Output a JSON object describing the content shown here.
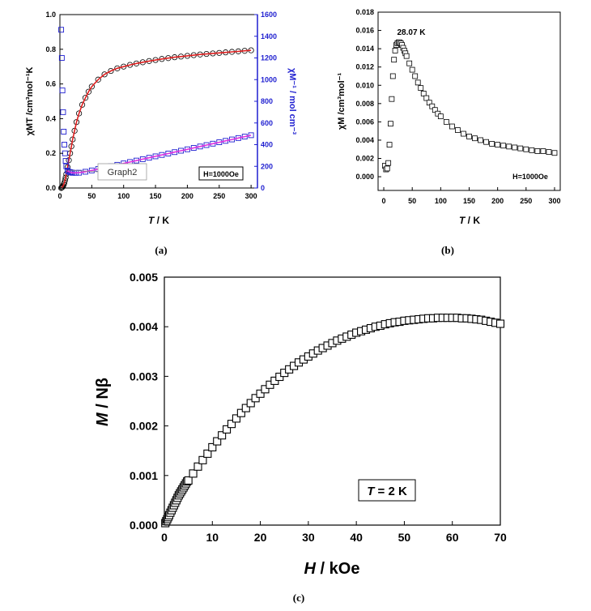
{
  "panel_labels": {
    "a": "(a)",
    "b": "(b)",
    "c": "(c)"
  },
  "chart_data": [
    {
      "panel": "(a)",
      "type": "scatter",
      "xlabel_italic": "T",
      "xlabel_rest": " / K",
      "ylabel_left": "χMT /cm³mol⁻¹K",
      "ylabel_right": "χM⁻¹ / mol cm⁻³",
      "xlim": [
        0,
        310
      ],
      "ylim_left": [
        0,
        1.0
      ],
      "ylim_right": [
        0,
        1600
      ],
      "xticks": [
        0,
        50,
        100,
        150,
        200,
        250,
        300
      ],
      "yticks_left": [
        0.0,
        0.2,
        0.4,
        0.6,
        0.8,
        1.0
      ],
      "yticks_left_labels": [
        "0.0",
        "0.2",
        "0.4",
        "0.6",
        "0.8",
        "1.0"
      ],
      "yticks_right": [
        0,
        200,
        400,
        600,
        800,
        1000,
        1200,
        1400,
        1600
      ],
      "annotation_box": "H=1000Oe",
      "callout": "Graph2",
      "series_chiT": {
        "x": [
          2,
          3,
          4,
          5,
          6,
          7,
          8,
          9,
          10,
          12,
          14,
          16,
          18,
          20,
          23,
          26,
          30,
          35,
          40,
          45,
          50,
          60,
          70,
          80,
          90,
          100,
          110,
          120,
          130,
          140,
          150,
          160,
          170,
          180,
          190,
          200,
          210,
          220,
          230,
          240,
          250,
          260,
          270,
          280,
          290,
          300
        ],
        "y": [
          0.0,
          0.003,
          0.006,
          0.012,
          0.02,
          0.03,
          0.045,
          0.06,
          0.08,
          0.12,
          0.16,
          0.2,
          0.24,
          0.28,
          0.33,
          0.38,
          0.43,
          0.48,
          0.52,
          0.555,
          0.585,
          0.625,
          0.655,
          0.675,
          0.69,
          0.7,
          0.71,
          0.718,
          0.725,
          0.732,
          0.738,
          0.744,
          0.749,
          0.754,
          0.758,
          0.762,
          0.766,
          0.77,
          0.773,
          0.776,
          0.779,
          0.782,
          0.785,
          0.788,
          0.791,
          0.794
        ]
      },
      "series_invchi": {
        "x": [
          2,
          3,
          4,
          5,
          6,
          7,
          8,
          9,
          10,
          12,
          14,
          16,
          18,
          20,
          25,
          30,
          40,
          50,
          60,
          70,
          80,
          90,
          100,
          110,
          120,
          130,
          140,
          150,
          160,
          170,
          180,
          190,
          200,
          210,
          220,
          230,
          240,
          250,
          260,
          270,
          280,
          290,
          300
        ],
        "y": [
          1460,
          1200,
          900,
          700,
          520,
          400,
          320,
          250,
          200,
          160,
          150,
          146,
          143,
          140,
          140,
          141,
          150,
          162,
          175,
          188,
          201,
          214,
          227,
          240,
          253,
          266,
          279,
          292,
          305,
          318,
          331,
          344,
          357,
          370,
          383,
          396,
          409,
          422,
          435,
          448,
          461,
          474,
          487
        ]
      }
    },
    {
      "panel": "(b)",
      "type": "scatter",
      "xlabel_italic": "T",
      "xlabel_rest": " / K",
      "ylabel": "χM /cm³mol⁻¹",
      "xlim": [
        -10,
        310
      ],
      "ylim": [
        -0.0015,
        0.018
      ],
      "xticks": [
        0,
        50,
        100,
        150,
        200,
        250,
        300
      ],
      "yticks": [
        0.0,
        0.002,
        0.004,
        0.006,
        0.008,
        0.01,
        0.012,
        0.014,
        0.016,
        0.018
      ],
      "yticks_labels": [
        "0.000",
        "0.002",
        "0.004",
        "0.006",
        "0.008",
        "0.010",
        "0.012",
        "0.014",
        "0.016",
        "0.018"
      ],
      "peak_label": "28.07 K",
      "annotation": "H=1000Oe",
      "x": [
        2,
        4,
        6,
        8,
        10,
        12,
        14,
        16,
        18,
        20,
        22,
        24,
        26,
        28,
        30,
        32,
        34,
        36,
        38,
        40,
        45,
        50,
        55,
        60,
        65,
        70,
        75,
        80,
        85,
        90,
        95,
        100,
        110,
        120,
        130,
        140,
        150,
        160,
        170,
        180,
        190,
        200,
        210,
        220,
        230,
        240,
        250,
        260,
        270,
        280,
        290,
        300
      ],
      "y": [
        0.0012,
        0.0008,
        0.0009,
        0.0015,
        0.0035,
        0.0058,
        0.0085,
        0.011,
        0.0128,
        0.0138,
        0.0144,
        0.0146,
        0.0147,
        0.0147,
        0.0146,
        0.0144,
        0.0141,
        0.0138,
        0.0135,
        0.0132,
        0.0124,
        0.0117,
        0.011,
        0.0103,
        0.0097,
        0.0091,
        0.0086,
        0.0081,
        0.0077,
        0.0073,
        0.0069,
        0.0066,
        0.006,
        0.0055,
        0.0051,
        0.0047,
        0.0044,
        0.0042,
        0.004,
        0.0038,
        0.0036,
        0.0035,
        0.0034,
        0.0033,
        0.0032,
        0.0031,
        0.003,
        0.0029,
        0.0028,
        0.0028,
        0.0027,
        0.0026
      ]
    },
    {
      "panel": "(c)",
      "type": "scatter",
      "xlabel_italic": "H",
      "xlabel_rest": " / kOe",
      "ylabel_italic": "M",
      "ylabel_rest": " / Nβ",
      "xlim": [
        0,
        70
      ],
      "ylim": [
        0,
        0.005
      ],
      "xticks": [
        0,
        10,
        20,
        30,
        40,
        50,
        60,
        70
      ],
      "yticks": [
        0.0,
        0.001,
        0.002,
        0.003,
        0.004,
        0.005
      ],
      "yticks_labels": [
        "0.000",
        "0.001",
        "0.002",
        "0.003",
        "0.004",
        "0.005"
      ],
      "legend_italic": "T",
      "legend_rest": " = 2 K",
      "x": [
        0.2,
        0.4,
        0.6,
        0.8,
        1.0,
        1.25,
        1.5,
        1.75,
        2.0,
        2.25,
        2.5,
        2.75,
        3.0,
        3.25,
        3.5,
        3.75,
        4.0,
        4.25,
        4.5,
        4.75,
        5.0,
        6,
        7,
        8,
        9,
        10,
        11,
        12,
        13,
        14,
        15,
        16,
        17,
        18,
        19,
        20,
        21,
        22,
        23,
        24,
        25,
        26,
        27,
        28,
        29,
        30,
        31,
        32,
        33,
        34,
        35,
        36,
        37,
        38,
        39,
        40,
        41,
        42,
        43,
        44,
        45,
        46,
        47,
        48,
        49,
        50,
        51,
        52,
        53,
        54,
        55,
        56,
        57,
        58,
        59,
        60,
        61,
        62,
        63,
        64,
        65,
        66,
        67,
        68,
        69,
        70
      ],
      "y": [
        4e-05,
        8e-05,
        0.00012,
        0.00016,
        0.0002,
        0.00025,
        0.0003,
        0.00035,
        0.0004,
        0.00045,
        0.0005,
        0.00055,
        0.0006,
        0.00064,
        0.00068,
        0.00072,
        0.00076,
        0.0008,
        0.00084,
        0.00088,
        0.0009,
        0.00104,
        0.00118,
        0.00131,
        0.00144,
        0.00157,
        0.00169,
        0.00181,
        0.00193,
        0.00204,
        0.00215,
        0.00226,
        0.00236,
        0.00246,
        0.00256,
        0.00265,
        0.00274,
        0.00283,
        0.00291,
        0.00299,
        0.00307,
        0.00314,
        0.00321,
        0.00328,
        0.00334,
        0.0034,
        0.00346,
        0.00352,
        0.00357,
        0.00362,
        0.00367,
        0.00372,
        0.00376,
        0.0038,
        0.00384,
        0.00388,
        0.00391,
        0.00394,
        0.00397,
        0.004,
        0.00402,
        0.00405,
        0.00407,
        0.00409,
        0.0041,
        0.00412,
        0.00413,
        0.00414,
        0.00415,
        0.00416,
        0.00417,
        0.00417,
        0.00418,
        0.00418,
        0.00418,
        0.00418,
        0.00418,
        0.00417,
        0.00417,
        0.00416,
        0.00415,
        0.00414,
        0.00412,
        0.0041,
        0.00408,
        0.00406
      ]
    }
  ]
}
